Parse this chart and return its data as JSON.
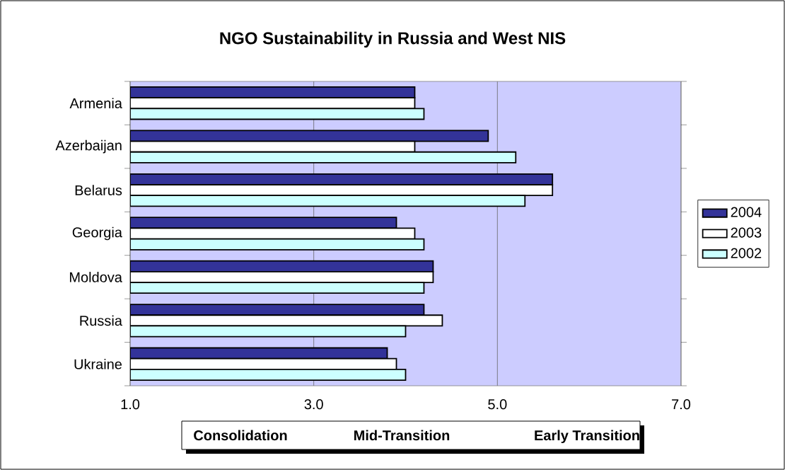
{
  "chart_data": {
    "type": "bar",
    "orientation": "horizontal",
    "title": "NGO Sustainability in Russia and West NIS",
    "categories": [
      "Armenia",
      "Azerbaijan",
      "Belarus",
      "Georgia",
      "Moldova",
      "Russia",
      "Ukraine"
    ],
    "series": [
      {
        "name": "2004",
        "color": "#333399",
        "values": [
          4.1,
          4.9,
          5.6,
          3.9,
          4.3,
          4.2,
          3.8
        ]
      },
      {
        "name": "2003",
        "color": "#ffffff",
        "values": [
          4.1,
          4.1,
          5.6,
          4.1,
          4.3,
          4.4,
          3.9
        ]
      },
      {
        "name": "2002",
        "color": "#ccffff",
        "values": [
          4.2,
          5.2,
          5.3,
          4.2,
          4.2,
          4.0,
          4.0
        ]
      }
    ],
    "xlim": [
      1,
      7
    ],
    "xticks": [
      {
        "value": 1,
        "label": "1.0"
      },
      {
        "value": 3,
        "label": "3.0"
      },
      {
        "value": 5,
        "label": "5.0"
      },
      {
        "value": 7,
        "label": "7.0"
      }
    ],
    "grid": "x",
    "legend": "right",
    "annotations": [
      "Consolidation",
      "Mid-Transition",
      "Early Transition"
    ]
  }
}
